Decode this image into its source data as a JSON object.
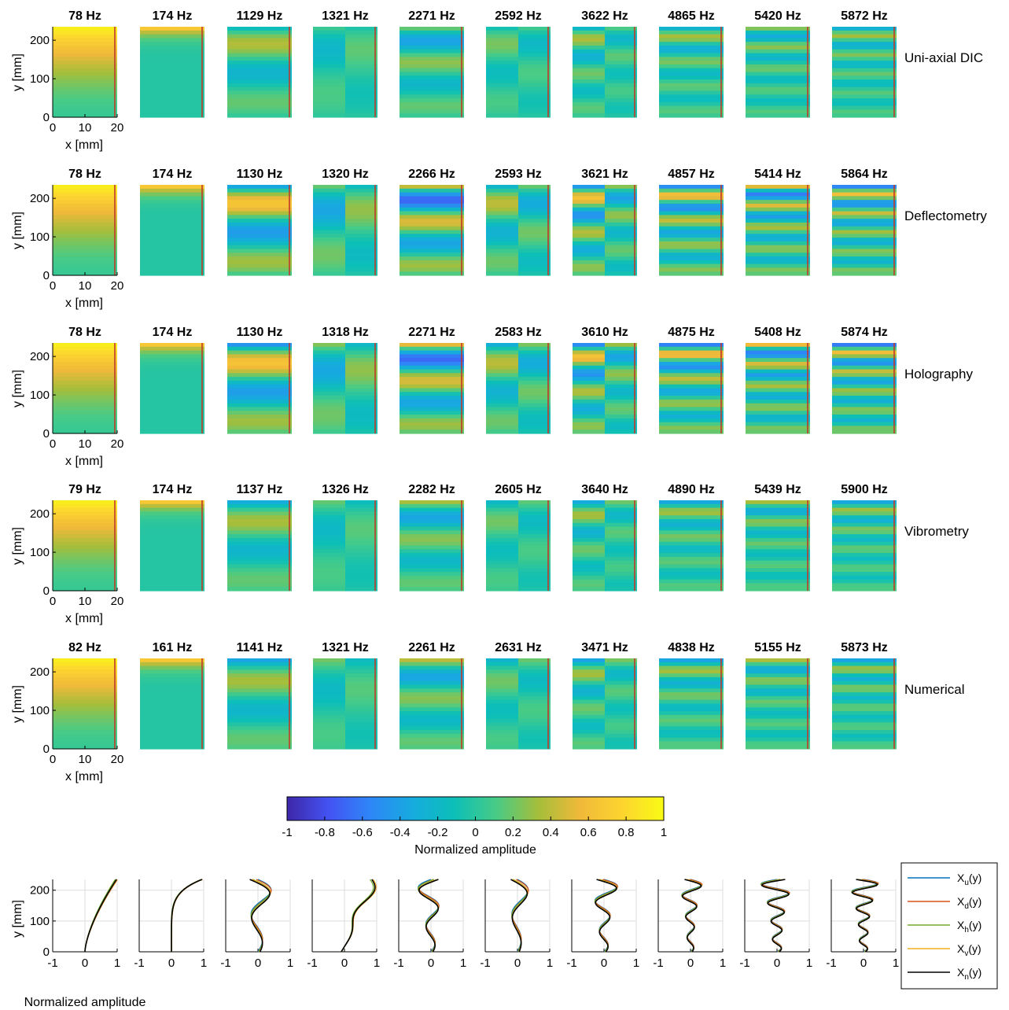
{
  "chart_data": {
    "type": "heatmap",
    "description_free": true,
    "rows": [
      {
        "name": "Uni-axial DIC",
        "frequencies": [
          "78 Hz",
          "174 Hz",
          "1129 Hz",
          "1321 Hz",
          "2271 Hz",
          "2592 Hz",
          "3622 Hz",
          "4865 Hz",
          "5420 Hz",
          "5872 Hz"
        ]
      },
      {
        "name": "Deflectometry",
        "frequencies": [
          "78 Hz",
          "174 Hz",
          "1130 Hz",
          "1320 Hz",
          "2266 Hz",
          "2593 Hz",
          "3621 Hz",
          "4857 Hz",
          "5414 Hz",
          "5864 Hz"
        ]
      },
      {
        "name": "Holography",
        "frequencies": [
          "78 Hz",
          "174 Hz",
          "1130 Hz",
          "1318 Hz",
          "2271 Hz",
          "2583 Hz",
          "3610 Hz",
          "4875 Hz",
          "5408 Hz",
          "5874 Hz"
        ]
      },
      {
        "name": "Vibrometry",
        "frequencies": [
          "79 Hz",
          "174 Hz",
          "1137 Hz",
          "1326 Hz",
          "2282 Hz",
          "2605 Hz",
          "3640 Hz",
          "4890 Hz",
          "5439 Hz",
          "5900 Hz"
        ]
      },
      {
        "name": "Numerical",
        "frequencies": [
          "82 Hz",
          "161 Hz",
          "1141 Hz",
          "1321 Hz",
          "2261 Hz",
          "2631 Hz",
          "3471 Hz",
          "4838 Hz",
          "5155 Hz",
          "5873 Hz"
        ]
      }
    ],
    "map_axes": {
      "xlabel": "x [mm]",
      "ylabel": "y [mm]",
      "xlim": [
        0,
        20
      ],
      "ylim": [
        0,
        235
      ],
      "xticks": [
        "0",
        "10",
        "20"
      ],
      "yticks": [
        "0",
        "100",
        "200"
      ]
    },
    "colorbar": {
      "label": "Normalized amplitude",
      "range": [
        -1,
        1
      ],
      "ticks": [
        "-1",
        "-0.8",
        "-0.6",
        "-0.4",
        "-0.2",
        "0",
        "0.2",
        "0.4",
        "0.6",
        "0.8",
        "1"
      ],
      "colormap": "parula",
      "stops": [
        "#3e26a8",
        "#4353f3",
        "#2e87f7",
        "#16abde",
        "#0cbfb7",
        "#48cb86",
        "#a5be3b",
        "#f0b93a",
        "#fcd42f",
        "#f9fb15"
      ]
    },
    "profiles": {
      "type": "line",
      "xlabel": "Normalized amplitude",
      "ylabel": "y [mm]",
      "xlim": [
        -1,
        1
      ],
      "ylim": [
        0,
        235
      ],
      "xticks": [
        "-1",
        "0",
        "1"
      ],
      "yticks": [
        "0",
        "100",
        "200"
      ],
      "grid": true,
      "legend_position": "right",
      "series": [
        {
          "base": "X",
          "sub": "u",
          "suffix": "(y)",
          "color": "#0072bd"
        },
        {
          "base": "X",
          "sub": "d",
          "suffix": "(y)",
          "color": "#d95319"
        },
        {
          "base": "X",
          "sub": "h",
          "suffix": "(y)",
          "color": "#77ac30"
        },
        {
          "base": "X",
          "sub": "v",
          "suffix": "(y)",
          "color": "#edb120"
        },
        {
          "base": "X",
          "sub": "n",
          "suffix": "(y)",
          "color": "#000000"
        }
      ],
      "modes": [
        {
          "kind": "bend1"
        },
        {
          "kind": "bend2"
        },
        {
          "kind": "osc",
          "n": 3,
          "amp": 0.55
        },
        {
          "kind": "lean",
          "n": 2,
          "amp": 0.5
        },
        {
          "kind": "osc",
          "n": 4,
          "amp": 0.5
        },
        {
          "kind": "osc",
          "n": 3,
          "amp": 0.45
        },
        {
          "kind": "osc",
          "n": 5,
          "amp": 0.5
        },
        {
          "kind": "osc",
          "n": 7,
          "amp": 0.4
        },
        {
          "kind": "osc",
          "n": 8,
          "amp": 0.55
        },
        {
          "kind": "osc",
          "n": 9,
          "amp": 0.5
        }
      ]
    }
  }
}
